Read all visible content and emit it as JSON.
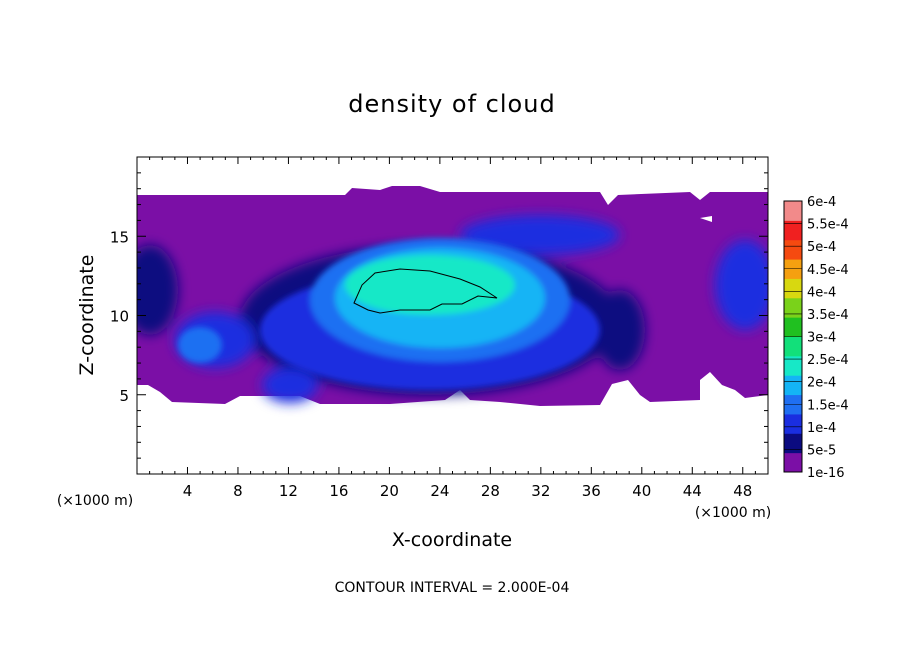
{
  "chart_data": {
    "type": "heatmap",
    "title": "density of cloud",
    "xlabel": "X-coordinate",
    "ylabel": "Z-coordinate",
    "x_unit": "(×1000 m)",
    "x_unit_right": "(×1000 m)",
    "xlim": [
      0,
      50
    ],
    "ylim": [
      0,
      20
    ],
    "x_ticks": [
      "4",
      "8",
      "12",
      "16",
      "20",
      "24",
      "28",
      "32",
      "36",
      "40",
      "44",
      "48"
    ],
    "y_ticks": [
      "5",
      "10",
      "15"
    ],
    "colorbar": {
      "labels": [
        "1e-16",
        "5e-5",
        "1e-4",
        "1.5e-4",
        "2e-4",
        "2.5e-4",
        "3e-4",
        "3.5e-4",
        "4e-4",
        "4.5e-4",
        "5e-4",
        "5.5e-4",
        "6e-4"
      ],
      "colors": [
        "#7b0fa6",
        "#0b0b80",
        "#1a2ee0",
        "#1f6ff2",
        "#14b4f5",
        "#17e8c7",
        "#12e07a",
        "#20c020",
        "#7ad21a",
        "#d8d810",
        "#f5a010",
        "#f54a10",
        "#f02020",
        "#f28a8a"
      ]
    },
    "contour_interval": "CONTOUR INTERVAL = 2.000E-04",
    "cloud_layer_z_range": [
      4.5,
      17.5
    ],
    "cloud_core_x_range": [
      17,
      29
    ],
    "cloud_core_z_range": [
      10,
      13
    ]
  }
}
